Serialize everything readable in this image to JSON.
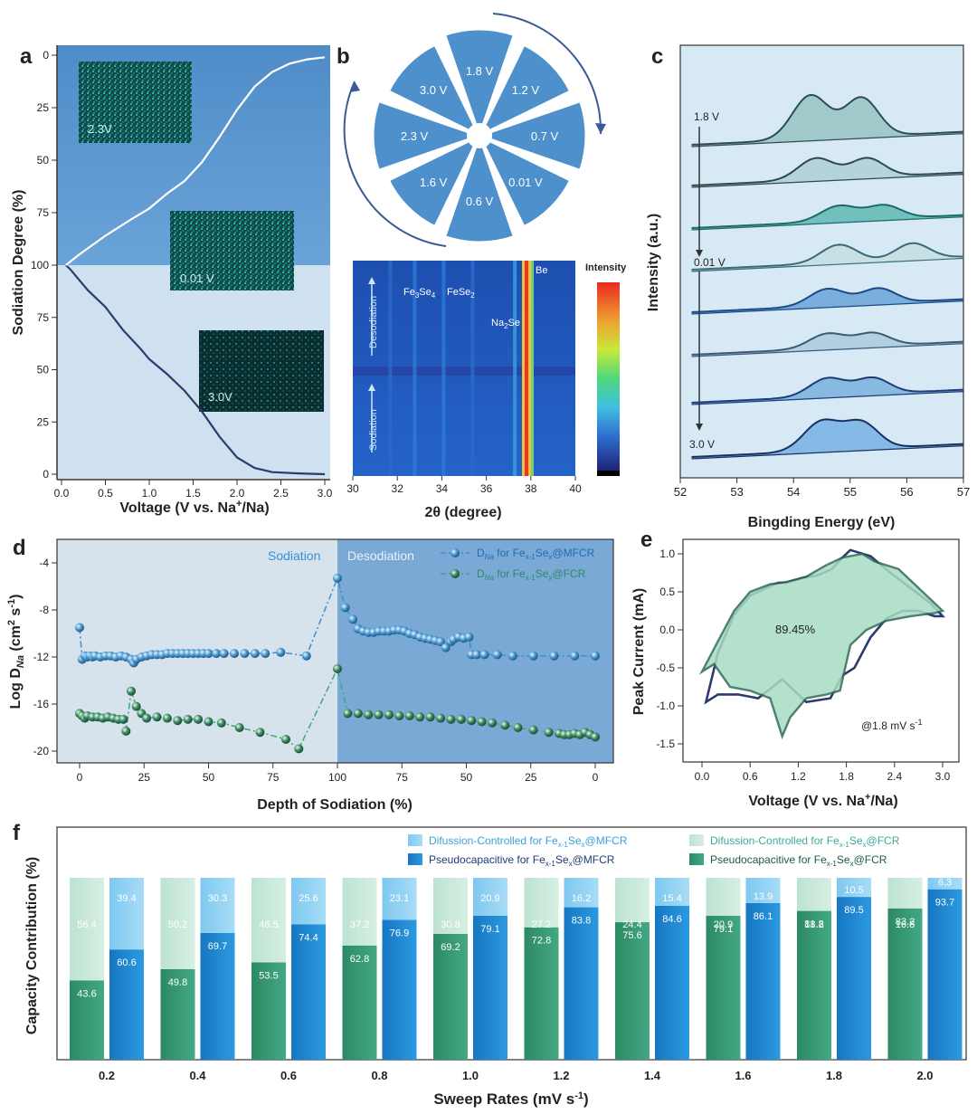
{
  "colors": {
    "navy": "#2d3a6e",
    "blue_dark": "#1b6fb8",
    "blue_mid": "#3a8fd6",
    "blue_light": "#8fd0f2",
    "green_dark": "#2e8a68",
    "green_light": "#c6e8d8",
    "panel_a_top": "#5b97cf",
    "panel_a_bottom": "#cfe0f0",
    "panel_c_bg": "#d8e9f6",
    "panel_d_left": "#d6e2ec",
    "panel_d_right": "#7aa9d6",
    "cv_fill": "#a8dcc2",
    "cv_edge": "#2e6a58"
  },
  "panel_a": {
    "label": "a",
    "ylabel": "Sodiation Degree (%)",
    "xlabel_pre": "Voltage (V vs. Na",
    "xlabel_sup": "+",
    "xlabel_post": "/Na)",
    "insets": [
      "2.3V",
      "0.01 V",
      "3.0V"
    ]
  },
  "panel_b": {
    "label": "b",
    "petals": [
      "1.8 V",
      "1.2 V",
      "0.7 V",
      "0.01 V",
      "0.6 V",
      "1.6 V",
      "2.3 V",
      "3.0 V"
    ],
    "heatmap_labels": {
      "fe3se4_pre": "Fe",
      "fe3se4_sub1": "3",
      "fe3se4_mid": "Se",
      "fe3se4_sub2": "4",
      "fese2_pre": "FeSe",
      "fese2_sub": "2",
      "na2se_pre": "Na",
      "na2se_sub": "2",
      "na2se_post": "Se",
      "be": "Be",
      "desodiation": "Desodiation",
      "sodiation": "Sodiation",
      "intensity": "Intensity"
    },
    "xlabel": "2θ (degree)",
    "xticks": [
      "30",
      "32",
      "34",
      "36",
      "38",
      "40"
    ]
  },
  "panel_c": {
    "label": "c",
    "ylabel": "Intensity (a.u.)",
    "xlabel": "Bingding Energy (eV)",
    "xticks": [
      "52",
      "53",
      "54",
      "55",
      "56",
      "57"
    ],
    "state_labels": [
      "1.8 V",
      "0.01 V",
      "3.0 V"
    ]
  },
  "panel_d": {
    "label": "d",
    "ylabel": "Log D",
    "ylabel_sub": "Na",
    "ylabel_unit_pre": " (cm",
    "ylabel_unit_sup1": "2",
    "ylabel_unit_mid": " s",
    "ylabel_unit_sup2": "-1",
    "ylabel_unit_post": ")",
    "xlabel": "Depth of Sodiation (%)",
    "region_left": "Sodiation",
    "region_right": "Desodiation",
    "legend": [
      {
        "pre": "D",
        "sub": "Na",
        "mid": " for Fe",
        "sub2": "x-1",
        "post": "Se",
        "sub3": "x",
        "end": "@MFCR"
      },
      {
        "pre": "D",
        "sub": "Na",
        "mid": " for Fe",
        "sub2": "x-1",
        "post": "Se",
        "sub3": "x",
        "end": "@FCR"
      }
    ],
    "xticks": [
      "0",
      "25",
      "50",
      "75",
      "100",
      "75",
      "50",
      "25",
      "0"
    ],
    "yticks": [
      "-4",
      "-8",
      "-12",
      "-16",
      "-20"
    ]
  },
  "panel_e": {
    "label": "e",
    "ylabel": "Peak Current (mA)",
    "xlabel_pre": "Voltage (V vs. Na",
    "xlabel_sup": "+",
    "xlabel_post": "/Na)",
    "annotation": "89.45%",
    "rate_pre": "@1.8 mV s",
    "rate_sup": "-1",
    "xticks": [
      "0.0",
      "0.6",
      "1.2",
      "1.8",
      "2.4",
      "3.0"
    ],
    "yticks": [
      "1.0",
      "0.5",
      "0.0",
      "-0.5",
      "-1.0",
      "-1.5"
    ]
  },
  "panel_f": {
    "label": "f",
    "ylabel": "Capacity Contribution (%)",
    "xlabel_pre": "Sweep Rates (mV s",
    "xlabel_sup": "-1",
    "xlabel_post": ")",
    "legend": [
      {
        "pre": "Difussion-Controlled for Fe",
        "sub": "x-1",
        "mid": "Se",
        "sub2": "x",
        "end": "@MFCR"
      },
      {
        "pre": "Difussion-Controlled for Fe",
        "sub": "x-1",
        "mid": "Se",
        "sub2": "x",
        "end": "@FCR"
      },
      {
        "pre": "Pseudocapacitive for Fe",
        "sub": "x-1",
        "mid": "Se",
        "sub2": "x",
        "end": "@MFCR"
      },
      {
        "pre": "Pseudocapacitive for Fe",
        "sub": "x-1",
        "mid": "Se",
        "sub2": "x",
        "end": "@FCR"
      }
    ]
  },
  "chart_data": [
    {
      "id": "a",
      "type": "line",
      "xlabel": "Voltage (V vs. Na+/Na)",
      "ylabel": "Sodiation Degree (%)",
      "xlim": [
        0,
        3.0
      ],
      "xticks": [
        0.0,
        0.5,
        1.0,
        1.5,
        2.0,
        2.5,
        3.0
      ],
      "yticks_top": [
        0,
        25,
        50,
        75,
        100
      ],
      "yticks_bottom": [
        100,
        75,
        50,
        25,
        0
      ],
      "series": [
        {
          "name": "discharge (sodiation)",
          "x": [
            0.05,
            0.1,
            0.2,
            0.3,
            0.5,
            0.7,
            0.9,
            1.0,
            1.2,
            1.4,
            1.6,
            1.8,
            2.0,
            2.2,
            2.4,
            2.7,
            3.0
          ],
          "y": [
            100,
            98,
            93,
            88,
            80,
            69,
            60,
            55,
            48,
            40,
            30,
            18,
            8,
            3,
            1,
            0.4,
            0
          ]
        },
        {
          "name": "charge (desodiation)",
          "x": [
            0.05,
            0.2,
            0.5,
            0.8,
            1.0,
            1.2,
            1.4,
            1.6,
            1.8,
            2.0,
            2.2,
            2.4,
            2.6,
            2.8,
            3.0
          ],
          "y": [
            100,
            95,
            86,
            78,
            73,
            66,
            60,
            51,
            39,
            26,
            15,
            8,
            4,
            2,
            1
          ]
        }
      ]
    },
    {
      "id": "b",
      "type": "heatmap",
      "xlabel": "2θ (degree)",
      "xlim": [
        30,
        40
      ],
      "peaks": [
        {
          "label": "Fe3Se4",
          "two_theta": 32.7
        },
        {
          "label": "FeSe2",
          "two_theta": 34.0
        },
        {
          "label": "Na2Se",
          "two_theta": 37.3
        },
        {
          "label": "Be",
          "two_theta": 37.9
        }
      ]
    },
    {
      "id": "c",
      "type": "line",
      "xlabel": "Bingding Energy (eV)",
      "ylabel": "Intensity (a.u.)",
      "xlim": [
        52,
        57
      ],
      "spectra": [
        {
          "state": "1.8 V",
          "peaks": [
            54.3,
            55.2
          ],
          "height": 1.0
        },
        {
          "state": "",
          "peaks": [
            54.4,
            55.3
          ],
          "height": 0.5
        },
        {
          "state": "",
          "peaks": [
            54.8,
            55.6
          ],
          "height": 0.35
        },
        {
          "state": "0.01 V",
          "peaks": [
            54.8,
            56.1
          ],
          "height": 0.45
        },
        {
          "state": "",
          "peaks": [
            54.6,
            55.5
          ],
          "height": 0.38
        },
        {
          "state": "",
          "peaks": [
            54.6,
            55.4
          ],
          "height": 0.32
        },
        {
          "state": "",
          "peaks": [
            54.6,
            55.4
          ],
          "height": 0.4
        },
        {
          "state": "3.0 V",
          "peaks": [
            54.5,
            55.2
          ],
          "height": 0.65
        }
      ]
    },
    {
      "id": "d",
      "type": "scatter",
      "xlabel": "Depth of Sodiation (%)",
      "ylabel": "Log DNa (cm2 s-1)",
      "ylim": [
        -21,
        -2
      ],
      "series": [
        {
          "name": "DNa for Fex-1Sex@MFCR",
          "x": [
            0,
            1,
            2,
            3,
            4,
            5,
            6,
            8,
            10,
            12,
            14,
            16,
            18,
            20,
            21,
            22,
            24,
            26,
            28,
            30,
            32,
            34,
            36,
            38,
            40,
            42,
            44,
            46,
            48,
            50,
            53,
            56,
            60,
            64,
            68,
            72,
            78,
            88,
            100,
            103,
            106,
            108,
            110,
            112,
            114,
            116,
            118,
            120,
            122,
            124,
            126,
            128,
            130,
            132,
            134,
            136,
            138,
            140,
            142,
            144,
            145,
            147,
            149,
            151,
            152,
            154,
            157,
            162,
            168,
            176,
            184,
            192,
            200
          ],
          "y": [
            -9.5,
            -12.2,
            -11.9,
            -12.0,
            -11.9,
            -12.0,
            -11.9,
            -12.0,
            -11.9,
            -11.9,
            -12.0,
            -11.9,
            -12.0,
            -12.2,
            -12.5,
            -12.2,
            -12.0,
            -11.9,
            -11.8,
            -11.8,
            -11.8,
            -11.7,
            -11.7,
            -11.7,
            -11.7,
            -11.7,
            -11.7,
            -11.7,
            -11.7,
            -11.7,
            -11.7,
            -11.7,
            -11.7,
            -11.7,
            -11.7,
            -11.7,
            -11.6,
            -11.9,
            -5.3,
            -7.8,
            -8.8,
            -9.6,
            -9.8,
            -9.9,
            -9.9,
            -9.8,
            -9.8,
            -9.8,
            -9.7,
            -9.7,
            -9.8,
            -10.0,
            -10.1,
            -10.3,
            -10.4,
            -10.5,
            -10.6,
            -10.7,
            -11.2,
            -10.7,
            -10.5,
            -10.3,
            -10.4,
            -10.3,
            -11.8,
            -11.8,
            -11.8,
            -11.8,
            -11.9,
            -11.9,
            -11.9,
            -11.9,
            -11.9
          ]
        },
        {
          "name": "DNa for Fex-1Sex@FCR",
          "x": [
            0,
            1,
            2,
            3,
            5,
            7,
            9,
            11,
            13,
            15,
            17,
            18,
            20,
            22,
            24,
            26,
            30,
            34,
            38,
            42,
            46,
            50,
            55,
            62,
            70,
            80,
            85,
            100,
            104,
            108,
            112,
            116,
            120,
            124,
            128,
            132,
            136,
            140,
            144,
            148,
            152,
            156,
            160,
            165,
            170,
            176,
            182,
            186,
            188,
            190,
            192,
            194,
            196,
            198,
            200
          ],
          "y": [
            -16.8,
            -17.0,
            -17.2,
            -17.0,
            -17.1,
            -17.1,
            -17.2,
            -17.1,
            -17.2,
            -17.3,
            -17.3,
            -18.3,
            -14.9,
            -16.2,
            -16.8,
            -17.2,
            -17.1,
            -17.2,
            -17.4,
            -17.3,
            -17.3,
            -17.5,
            -17.6,
            -18.0,
            -18.4,
            -19.0,
            -19.8,
            -13.0,
            -16.8,
            -16.8,
            -16.9,
            -16.9,
            -16.9,
            -17.0,
            -17.0,
            -17.1,
            -17.1,
            -17.2,
            -17.3,
            -17.3,
            -17.4,
            -17.5,
            -17.6,
            -17.8,
            -18.0,
            -18.2,
            -18.4,
            -18.5,
            -18.6,
            -18.6,
            -18.5,
            -18.6,
            -18.4,
            -18.6,
            -18.8
          ]
        }
      ]
    },
    {
      "id": "e",
      "type": "line",
      "xlabel": "Voltage (V vs. Na+/Na)",
      "ylabel": "Peak Current (mA)",
      "xlim": [
        -0.2,
        3.1
      ],
      "ylim": [
        -1.6,
        1.2
      ],
      "capacitive_fraction_percent": 89.45,
      "series": [
        {
          "name": "total CV",
          "x": [
            0.05,
            0.2,
            0.45,
            0.7,
            1.0,
            1.3,
            1.6,
            1.75,
            1.9,
            2.1,
            2.3,
            2.5,
            2.7,
            2.9,
            3.0,
            2.85,
            2.6,
            2.35,
            2.1,
            1.85,
            1.75,
            1.62,
            1.45,
            1.25,
            1.05,
            0.95,
            0.8,
            0.6,
            0.4,
            0.2,
            0.05
          ],
          "y": [
            -0.95,
            -0.85,
            -0.85,
            -0.9,
            -0.65,
            -0.95,
            -0.9,
            -0.6,
            -0.5,
            -0.1,
            0.15,
            0.25,
            0.25,
            0.18,
            0.18,
            0.35,
            0.55,
            0.75,
            0.97,
            1.05,
            0.95,
            0.8,
            0.72,
            0.68,
            0.62,
            0.62,
            0.55,
            0.45,
            0.2,
            -0.3,
            -0.95
          ]
        },
        {
          "name": "capacitive CV",
          "x": [
            0.0,
            0.15,
            0.35,
            0.6,
            0.85,
            1.0,
            1.1,
            1.3,
            1.55,
            1.72,
            1.85,
            2.05,
            2.3,
            2.6,
            2.9,
            3.0,
            2.85,
            2.65,
            2.45,
            2.3,
            2.15,
            2.0,
            1.75,
            1.55,
            1.3,
            1.05,
            0.85,
            0.6,
            0.4,
            0.2,
            0.0
          ],
          "y": [
            -0.55,
            -0.45,
            -0.75,
            -0.8,
            -0.9,
            -1.4,
            -1.15,
            -0.9,
            -0.85,
            -0.8,
            -0.2,
            0.0,
            0.12,
            0.18,
            0.22,
            0.25,
            0.4,
            0.6,
            0.8,
            0.85,
            0.9,
            1.0,
            0.95,
            0.85,
            0.7,
            0.63,
            0.6,
            0.5,
            0.25,
            -0.15,
            -0.55
          ]
        }
      ]
    },
    {
      "id": "f",
      "type": "bar",
      "title": "",
      "xlabel": "Sweep Rates (mV s-1)",
      "ylabel": "Capacity Contribution (%)",
      "categories": [
        "0.2",
        "0.4",
        "0.6",
        "0.8",
        "1.0",
        "1.2",
        "1.4",
        "1.6",
        "1.8",
        "2.0"
      ],
      "ylim": [
        0,
        100
      ],
      "series": [
        {
          "name": "Pseudocapacitive for Fex-1Sex@FCR",
          "values": [
            43.6,
            49.8,
            53.5,
            62.8,
            69.2,
            72.8,
            75.6,
            79.1,
            81.8,
            83.2
          ]
        },
        {
          "name": "Difussion-Controlled for Fex-1Sex@FCR",
          "values": [
            56.4,
            50.2,
            46.5,
            37.2,
            30.8,
            27.2,
            24.4,
            20.9,
            18.2,
            16.8
          ]
        },
        {
          "name": "Pseudocapacitive for Fex-1Sex@MFCR",
          "values": [
            60.6,
            69.7,
            74.4,
            76.9,
            79.1,
            83.8,
            84.6,
            86.1,
            89.5,
            93.7
          ]
        },
        {
          "name": "Difussion-Controlled for Fex-1Sex@MFCR",
          "values": [
            39.4,
            30.3,
            25.6,
            23.1,
            20.9,
            16.2,
            15.4,
            13.9,
            10.5,
            6.3
          ]
        }
      ]
    }
  ]
}
